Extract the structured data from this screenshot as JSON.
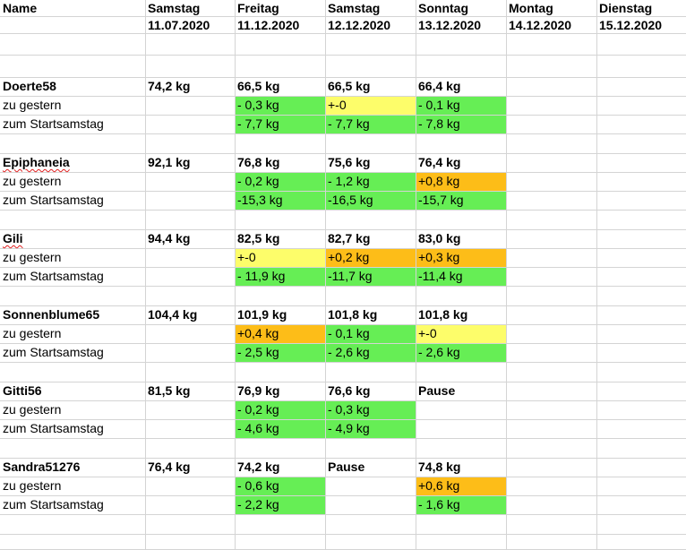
{
  "header": {
    "name_label": "Name",
    "columns": [
      {
        "day": "Samstag",
        "date": "11.07.2020"
      },
      {
        "day": "Freitag",
        "date": "11.12.2020"
      },
      {
        "day": "Samstag",
        "date": "12.12.2020"
      },
      {
        "day": "Sonntag",
        "date": "13.12.2020"
      },
      {
        "day": "Montag",
        "date": "14.12.2020"
      },
      {
        "day": "Dienstag",
        "date": "15.12.2020"
      }
    ]
  },
  "row_labels": {
    "change_yesterday": "zu gestern",
    "change_start": "zum Startsamstag"
  },
  "colors": {
    "decrease": "#66ee55",
    "unchanged": "#fdfd6a",
    "increase": "#fdbd18",
    "grid": "#d4d4d4"
  },
  "participants": [
    {
      "name": "Doerte58",
      "spell_flag": false,
      "weights": [
        "74,2 kg",
        "66,5 kg",
        "66,5 kg",
        "66,4 kg",
        "",
        ""
      ],
      "yesterday": [
        {
          "v": "",
          "c": ""
        },
        {
          "v": "- 0,3 kg",
          "c": "green"
        },
        {
          "v": "+-0",
          "c": "yellow"
        },
        {
          "v": "- 0,1 kg",
          "c": "green"
        },
        {
          "v": "",
          "c": ""
        },
        {
          "v": "",
          "c": ""
        }
      ],
      "start": [
        {
          "v": "",
          "c": ""
        },
        {
          "v": "- 7,7 kg",
          "c": "green"
        },
        {
          "v": "- 7,7 kg",
          "c": "green"
        },
        {
          "v": "- 7,8 kg",
          "c": "green"
        },
        {
          "v": "",
          "c": ""
        },
        {
          "v": "",
          "c": ""
        }
      ]
    },
    {
      "name": "Epiphaneia",
      "spell_flag": true,
      "weights": [
        "92,1 kg",
        "76,8 kg",
        "75,6 kg",
        "76,4 kg",
        "",
        ""
      ],
      "yesterday": [
        {
          "v": "",
          "c": ""
        },
        {
          "v": " - 0,2 kg",
          "c": "green"
        },
        {
          "v": "- 1,2 kg",
          "c": "green"
        },
        {
          "v": "+0,8 kg",
          "c": "orange"
        },
        {
          "v": "",
          "c": ""
        },
        {
          "v": "",
          "c": ""
        }
      ],
      "start": [
        {
          "v": "",
          "c": ""
        },
        {
          "v": "-15,3 kg",
          "c": "green"
        },
        {
          "v": "-16,5 kg",
          "c": "green"
        },
        {
          "v": "-15,7 kg",
          "c": "green"
        },
        {
          "v": "",
          "c": ""
        },
        {
          "v": "",
          "c": ""
        }
      ]
    },
    {
      "name": "Gili",
      "spell_flag": true,
      "weights": [
        "94,4 kg",
        "82,5 kg",
        "82,7 kg",
        "83,0 kg",
        "",
        ""
      ],
      "yesterday": [
        {
          "v": "",
          "c": ""
        },
        {
          "v": "+-0",
          "c": "yellow"
        },
        {
          "v": "+0,2 kg",
          "c": "orange"
        },
        {
          "v": "+0,3 kg",
          "c": "orange"
        },
        {
          "v": "",
          "c": ""
        },
        {
          "v": "",
          "c": ""
        }
      ],
      "start": [
        {
          "v": "",
          "c": ""
        },
        {
          "v": "- 11,9 kg",
          "c": "green"
        },
        {
          "v": "-11,7 kg",
          "c": "green"
        },
        {
          "v": "-11,4 kg",
          "c": "green"
        },
        {
          "v": "",
          "c": ""
        },
        {
          "v": "",
          "c": ""
        }
      ]
    },
    {
      "name": "Sonnenblume65",
      "spell_flag": false,
      "weights": [
        "104,4 kg",
        "101,9 kg",
        "101,8 kg",
        "101,8 kg",
        "",
        ""
      ],
      "yesterday": [
        {
          "v": "",
          "c": ""
        },
        {
          "v": "+0,4 kg",
          "c": "orange"
        },
        {
          "v": "- 0,1 kg",
          "c": "green"
        },
        {
          "v": "+-0",
          "c": "yellow"
        },
        {
          "v": "",
          "c": ""
        },
        {
          "v": "",
          "c": ""
        }
      ],
      "start": [
        {
          "v": "",
          "c": ""
        },
        {
          "v": "- 2,5 kg",
          "c": "green"
        },
        {
          "v": "- 2,6 kg",
          "c": "green"
        },
        {
          "v": "- 2,6 kg",
          "c": "green"
        },
        {
          "v": "",
          "c": ""
        },
        {
          "v": "",
          "c": ""
        }
      ]
    },
    {
      "name": "Gitti56",
      "spell_flag": false,
      "weights": [
        "81,5 kg",
        "76,9 kg",
        "76,6 kg",
        "Pause",
        "",
        ""
      ],
      "yesterday": [
        {
          "v": "",
          "c": ""
        },
        {
          "v": "- 0,2 kg",
          "c": "green"
        },
        {
          "v": "- 0,3 kg",
          "c": "green"
        },
        {
          "v": "",
          "c": ""
        },
        {
          "v": "",
          "c": ""
        },
        {
          "v": "",
          "c": ""
        }
      ],
      "start": [
        {
          "v": "",
          "c": ""
        },
        {
          "v": "- 4,6 kg",
          "c": "green"
        },
        {
          "v": "- 4,9 kg",
          "c": "green"
        },
        {
          "v": "",
          "c": ""
        },
        {
          "v": "",
          "c": ""
        },
        {
          "v": "",
          "c": ""
        }
      ]
    },
    {
      "name": "Sandra51276",
      "spell_flag": false,
      "weights": [
        "76,4 kg",
        "74,2 kg",
        "Pause",
        "74,8 kg",
        "",
        ""
      ],
      "yesterday": [
        {
          "v": "",
          "c": ""
        },
        {
          "v": "- 0,6 kg",
          "c": "green"
        },
        {
          "v": "",
          "c": ""
        },
        {
          "v": "+0,6 kg",
          "c": "orange"
        },
        {
          "v": "",
          "c": ""
        },
        {
          "v": "",
          "c": ""
        }
      ],
      "start": [
        {
          "v": "",
          "c": ""
        },
        {
          "v": "- 2,2 kg",
          "c": "green"
        },
        {
          "v": "",
          "c": ""
        },
        {
          "v": "- 1,6 kg",
          "c": "green"
        },
        {
          "v": "",
          "c": ""
        },
        {
          "v": "",
          "c": ""
        }
      ]
    }
  ]
}
